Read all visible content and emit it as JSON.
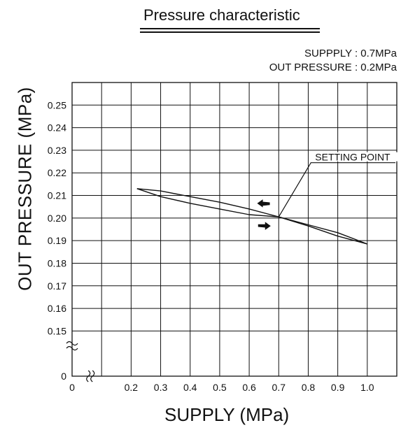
{
  "chart_data": {
    "type": "line",
    "title": "Pressure characteristic",
    "conditions": [
      "SUPPPLY : 0.7MPa",
      "OUT PRESSURE : 0.2MPa"
    ],
    "xlabel": "SUPPLY (MPa)",
    "ylabel": "OUT PRESSURE (MPa)",
    "xlim": [
      0,
      1.1
    ],
    "ylim": [
      0.14,
      0.26
    ],
    "x_ticks": [
      "0",
      "0.2",
      "0.3",
      "0.4",
      "0.5",
      "0.6",
      "0.7",
      "0.8",
      "0.9",
      "1.0"
    ],
    "y_ticks": [
      "0",
      "0.15",
      "0.16",
      "0.17",
      "0.18",
      "0.19",
      "0.20",
      "0.21",
      "0.22",
      "0.23",
      "0.24",
      "0.25"
    ],
    "axis_break": true,
    "grid": true,
    "series": [
      {
        "x": [
          0.22,
          0.3,
          0.4,
          0.5,
          0.6,
          0.7,
          0.8,
          0.9,
          1.0
        ],
        "y": [
          0.213,
          0.212,
          0.2095,
          0.207,
          0.204,
          0.2005,
          0.197,
          0.1935,
          0.1885
        ]
      },
      {
        "x": [
          0.22,
          0.3,
          0.4,
          0.5,
          0.6,
          0.7,
          0.8,
          0.9,
          1.0
        ],
        "y": [
          0.213,
          0.2095,
          0.2065,
          0.204,
          0.2015,
          0.2005,
          0.1965,
          0.192,
          0.1885
        ]
      }
    ],
    "annotation": {
      "label": "SETTING POINT",
      "x": 0.7,
      "y": 0.2005
    },
    "arrows": [
      {
        "direction": "left",
        "x": 0.65,
        "y": 0.2065
      },
      {
        "direction": "right",
        "x": 0.65,
        "y": 0.1965
      }
    ]
  }
}
